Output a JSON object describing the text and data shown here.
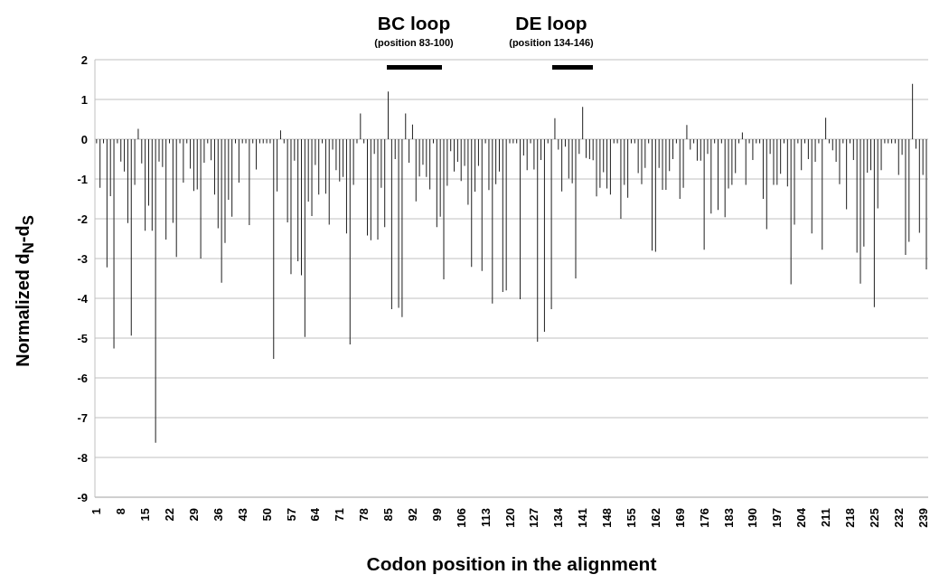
{
  "chart_data": {
    "type": "bar",
    "xlabel": "Codon position in the alignment",
    "ylabel": "Normalized d$_{N}$-d$_{S}$",
    "annotations": [
      "BC loop",
      "(position 83-100)",
      "DE loop",
      "(position 134-146)"
    ],
    "ylim": [
      -9,
      2
    ],
    "yticks": [
      -9,
      -8,
      -7,
      -6,
      -5,
      -4,
      -3,
      -2,
      -1,
      0,
      1,
      2
    ],
    "grid": "y",
    "color": "#1e1e1e",
    "categories": [
      "1",
      null,
      null,
      null,
      null,
      null,
      null,
      "8",
      null,
      null,
      null,
      null,
      null,
      null,
      "15",
      null,
      null,
      null,
      null,
      null,
      null,
      "22",
      null,
      null,
      null,
      null,
      null,
      null,
      "29",
      null,
      null,
      null,
      null,
      null,
      null,
      "36",
      null,
      null,
      null,
      null,
      null,
      null,
      "43",
      null,
      null,
      null,
      null,
      null,
      null,
      "50",
      null,
      null,
      null,
      null,
      null,
      null,
      "57",
      null,
      null,
      null,
      null,
      null,
      null,
      "64",
      null,
      null,
      null,
      null,
      null,
      null,
      "71",
      null,
      null,
      null,
      null,
      null,
      null,
      "78",
      null,
      null,
      null,
      null,
      null,
      null,
      "85",
      null,
      null,
      null,
      null,
      null,
      null,
      "92",
      null,
      null,
      null,
      null,
      null,
      null,
      "99",
      null,
      null,
      null,
      null,
      null,
      null,
      "106",
      null,
      null,
      null,
      null,
      null,
      null,
      "113",
      null,
      null,
      null,
      null,
      null,
      null,
      "120",
      null,
      null,
      null,
      null,
      null,
      null,
      "127",
      null,
      null,
      null,
      null,
      null,
      null,
      "134",
      null,
      null,
      null,
      null,
      null,
      null,
      "141",
      null,
      null,
      null,
      null,
      null,
      null,
      "148",
      null,
      null,
      null,
      null,
      null,
      null,
      "155",
      null,
      null,
      null,
      null,
      null,
      null,
      "162",
      null,
      null,
      null,
      null,
      null,
      null,
      "169",
      null,
      null,
      null,
      null,
      null,
      null,
      "176",
      null,
      null,
      null,
      null,
      null,
      null,
      "183",
      null,
      null,
      null,
      null,
      null,
      null,
      "190",
      null,
      null,
      null,
      null,
      null,
      null,
      "197",
      null,
      null,
      null,
      null,
      null,
      null,
      "204",
      null,
      null,
      null,
      null,
      null,
      null,
      "211",
      null,
      null,
      null,
      null,
      null,
      null,
      "218",
      null,
      null,
      null,
      null,
      null,
      null,
      "225",
      null,
      null,
      null,
      null,
      null,
      null,
      "232",
      null,
      null,
      null,
      null,
      null,
      null,
      "239",
      null
    ],
    "values": [
      -0.1,
      -1.22,
      -0.1,
      -3.22,
      -1.43,
      -5.26,
      -0.1,
      -0.56,
      -0.81,
      -2.11,
      -4.94,
      -1.15,
      0.26,
      -0.61,
      -2.3,
      -1.67,
      -2.3,
      -7.63,
      -0.56,
      -0.7,
      -2.52,
      -0.1,
      -2.1,
      -2.96,
      -0.1,
      -1.09,
      -0.1,
      -0.74,
      -1.3,
      -1.26,
      -3.0,
      -0.59,
      -0.1,
      -0.53,
      -1.39,
      -2.24,
      -3.61,
      -2.61,
      -1.52,
      -1.95,
      -0.1,
      -1.09,
      -0.1,
      -0.1,
      -2.16,
      -0.1,
      -0.76,
      -0.1,
      -0.1,
      -0.1,
      -0.1,
      -5.52,
      -1.31,
      0.22,
      -0.1,
      -2.09,
      -3.39,
      -0.54,
      -3.07,
      -3.42,
      -4.97,
      -1.57,
      -1.93,
      -0.65,
      -1.39,
      -0.1,
      -1.37,
      -2.15,
      -0.26,
      -0.78,
      -1.06,
      -0.95,
      -2.37,
      -5.16,
      -1.15,
      -0.1,
      0.65,
      -0.1,
      -2.42,
      -2.54,
      -0.37,
      -2.52,
      -1.22,
      -2.21,
      1.2,
      -4.27,
      -0.5,
      -4.24,
      -4.47,
      0.65,
      -0.59,
      0.37,
      -1.56,
      -0.94,
      -0.64,
      -0.95,
      -1.26,
      -0.1,
      -2.21,
      -1.95,
      -3.52,
      -1.17,
      -0.3,
      -0.81,
      -0.57,
      -1.05,
      -0.67,
      -1.65,
      -3.21,
      -1.32,
      -0.67,
      -3.31,
      -0.1,
      -1.28,
      -4.13,
      -1.13,
      -0.81,
      -3.84,
      -3.8,
      -0.1,
      -0.1,
      -0.1,
      -4.02,
      -0.41,
      -0.78,
      -0.1,
      -0.76,
      -5.09,
      -0.52,
      -4.84,
      -0.1,
      -4.27,
      0.53,
      -0.26,
      -1.31,
      -0.19,
      -0.99,
      -1.11,
      -3.5,
      -0.37,
      0.81,
      -0.47,
      -0.5,
      -0.53,
      -1.44,
      -1.22,
      -0.83,
      -1.24,
      -1.39,
      -0.1,
      -0.1,
      -2.0,
      -1.15,
      -1.47,
      -0.1,
      -0.1,
      -0.85,
      -1.13,
      -0.72,
      -0.1,
      -2.8,
      -2.83,
      -0.72,
      -1.27,
      -1.27,
      -0.8,
      -0.5,
      -0.1,
      -1.5,
      -1.22,
      0.36,
      -0.26,
      -0.1,
      -0.54,
      -0.54,
      -2.78,
      -0.37,
      -1.87,
      -0.1,
      -1.78,
      -0.1,
      -1.96,
      -1.24,
      -1.15,
      -0.85,
      -0.1,
      0.17,
      -1.15,
      -0.1,
      -0.52,
      -0.1,
      -0.1,
      -1.5,
      -2.26,
      -0.37,
      -1.15,
      -1.15,
      -0.87,
      -0.1,
      -1.19,
      -3.65,
      -2.15,
      -0.1,
      -0.78,
      -0.1,
      -0.5,
      -2.37,
      -0.57,
      -0.1,
      -2.78,
      0.54,
      -0.1,
      -0.28,
      -0.57,
      -1.13,
      -0.1,
      -1.76,
      -0.1,
      -0.52,
      -2.85,
      -3.63,
      -2.7,
      -0.84,
      -0.78,
      -4.22,
      -1.74,
      -0.78,
      -0.1,
      -0.1,
      -0.1,
      -0.1,
      -0.9,
      -0.39,
      -2.91,
      -2.58,
      1.39,
      -0.24,
      -2.35,
      -0.9,
      -3.27
    ]
  }
}
